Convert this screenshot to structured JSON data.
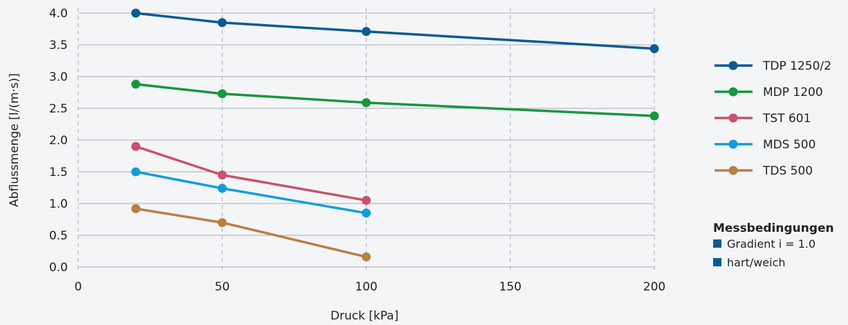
{
  "chart_data": {
    "type": "line",
    "xlabel": "Druck [kPa]",
    "ylabel": "Abflussmenge [l/(m·s)]",
    "xlim": [
      0,
      200
    ],
    "ylim": [
      0,
      4.0
    ],
    "xticks": [
      0,
      50,
      100,
      150,
      200
    ],
    "yticks": [
      0.0,
      0.5,
      1.0,
      1.5,
      2.0,
      2.5,
      3.0,
      3.5,
      4.0
    ],
    "xtick_labels": [
      "0",
      "50",
      "100",
      "150",
      "200"
    ],
    "ytick_labels": [
      "0.0",
      "0.5",
      "1.0",
      "1.5",
      "2.0",
      "2.5",
      "3.0",
      "3.5",
      "4.0"
    ],
    "grid": true,
    "legend_position": "right",
    "series": [
      {
        "name": "TDP 1250/2",
        "color": "#0b5a92",
        "x": [
          20,
          50,
          100,
          200
        ],
        "y": [
          4.0,
          3.85,
          3.71,
          3.44
        ]
      },
      {
        "name": "MDP 1200",
        "color": "#17963f",
        "x": [
          20,
          50,
          100,
          200
        ],
        "y": [
          2.88,
          2.73,
          2.59,
          2.38
        ]
      },
      {
        "name": "TST 601",
        "color": "#c9516e",
        "x": [
          20,
          50,
          100
        ],
        "y": [
          1.9,
          1.45,
          1.05
        ]
      },
      {
        "name": "MDS 500",
        "color": "#109ed8",
        "x": [
          20,
          50,
          100
        ],
        "y": [
          1.5,
          1.24,
          0.85
        ]
      },
      {
        "name": "TDS 500",
        "color": "#b88042",
        "x": [
          20,
          50,
          100
        ],
        "y": [
          0.92,
          0.7,
          0.16
        ]
      }
    ]
  },
  "conditions": {
    "title": "Messbedingungen",
    "items": [
      "Gradient i = 1.0",
      "hart/weich"
    ],
    "marker_color": "#0b5a92"
  }
}
